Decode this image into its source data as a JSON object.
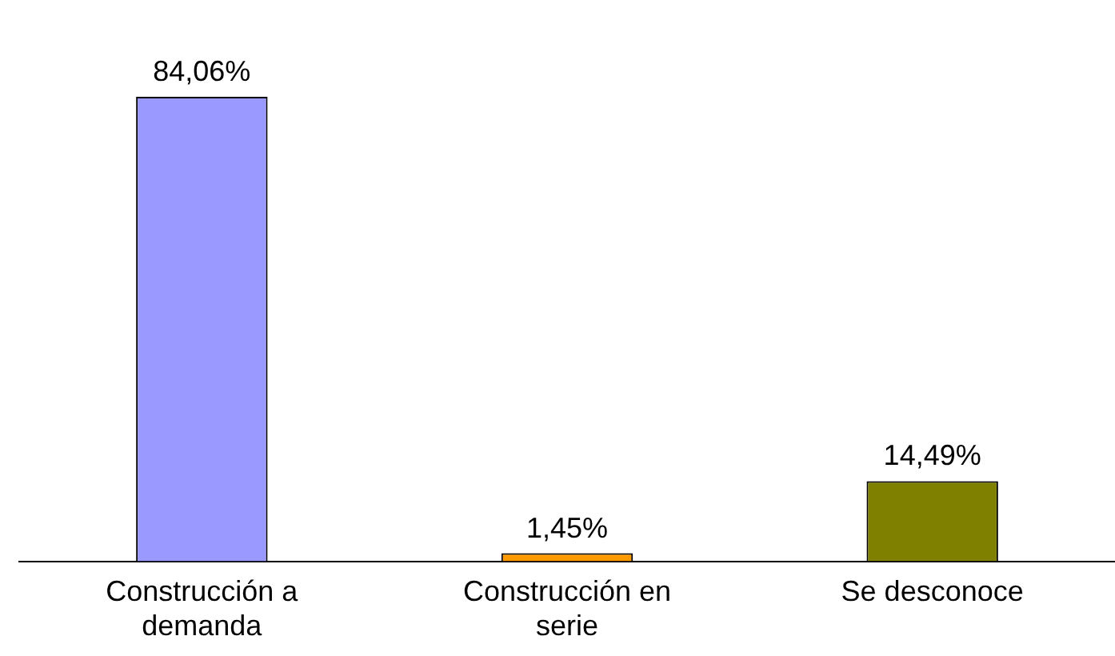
{
  "chart_data": {
    "type": "bar",
    "categories": [
      "Construcción a demanda",
      "Construcción en serie",
      "Se desconoce"
    ],
    "values": [
      84.06,
      1.45,
      14.49
    ],
    "colors": [
      "#9999ff",
      "#ff9900",
      "#808000"
    ],
    "value_labels": [
      "84,06%",
      "1,45%",
      "14,49%"
    ],
    "grid": false,
    "legend": false
  }
}
